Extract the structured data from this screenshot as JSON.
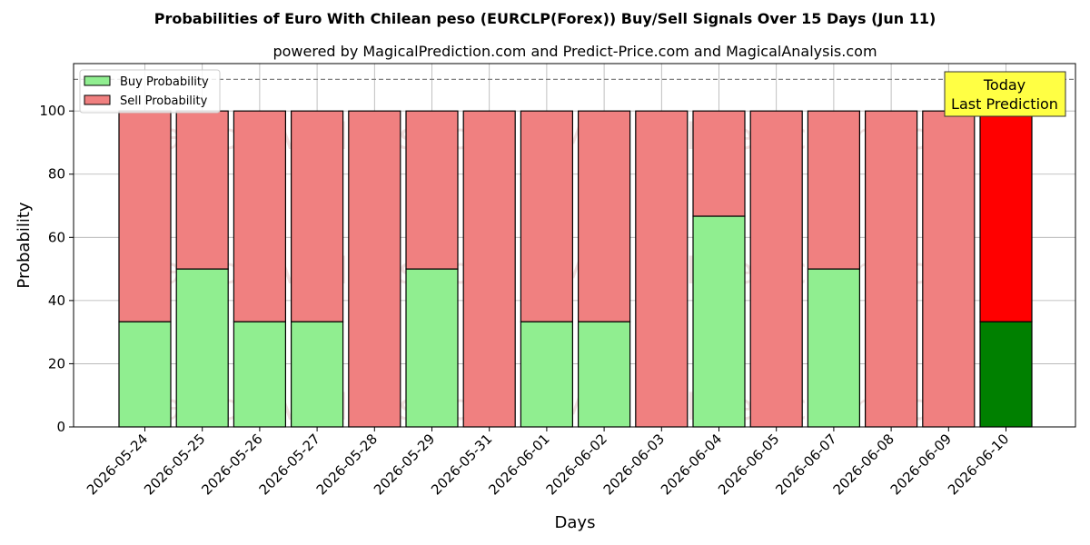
{
  "chart_data": {
    "type": "bar",
    "stacked": true,
    "title": "Probabilities of Euro With Chilean peso (EURCLP(Forex)) Buy/Sell Signals Over 15 Days (Jun 11)",
    "subtitle": "powered by MagicalPrediction.com and Predict-Price.com and MagicalAnalysis.com",
    "xlabel": "Days",
    "ylabel": "Probability",
    "ylim": [
      0,
      115
    ],
    "yticks": [
      0,
      20,
      40,
      60,
      80,
      100
    ],
    "grid": true,
    "legend_position": "top-left",
    "categories": [
      "2026-05-24",
      "2026-05-25",
      "2026-05-26",
      "2026-05-27",
      "2026-05-28",
      "2026-05-29",
      "2026-05-31",
      "2026-06-01",
      "2026-06-02",
      "2026-06-03",
      "2026-06-04",
      "2026-06-05",
      "2026-06-07",
      "2026-06-08",
      "2026-06-09",
      "2026-06-10"
    ],
    "series": [
      {
        "name": "Buy Probability",
        "color": "#90ee90",
        "values": [
          33.3,
          50,
          33.3,
          33.3,
          0,
          50,
          0,
          33.3,
          33.3,
          0,
          66.7,
          0,
          50,
          0,
          0,
          33.3
        ]
      },
      {
        "name": "Sell Probability",
        "color": "#f08080",
        "values": [
          66.7,
          50,
          66.7,
          66.7,
          100,
          50,
          100,
          66.7,
          66.7,
          100,
          33.3,
          100,
          50,
          100,
          100,
          66.7
        ]
      }
    ],
    "highlight": {
      "index": 15,
      "buy_color": "#008000",
      "sell_color": "#ff0000"
    },
    "reference_line": {
      "y": 110,
      "style": "dashed",
      "color": "#808080"
    },
    "annotation": {
      "lines": [
        "Today",
        "Last Prediction"
      ],
      "background": "#ffff44"
    },
    "watermarks": [
      "MagicalAnalysis.com",
      "MagicalPrediction.com"
    ]
  }
}
